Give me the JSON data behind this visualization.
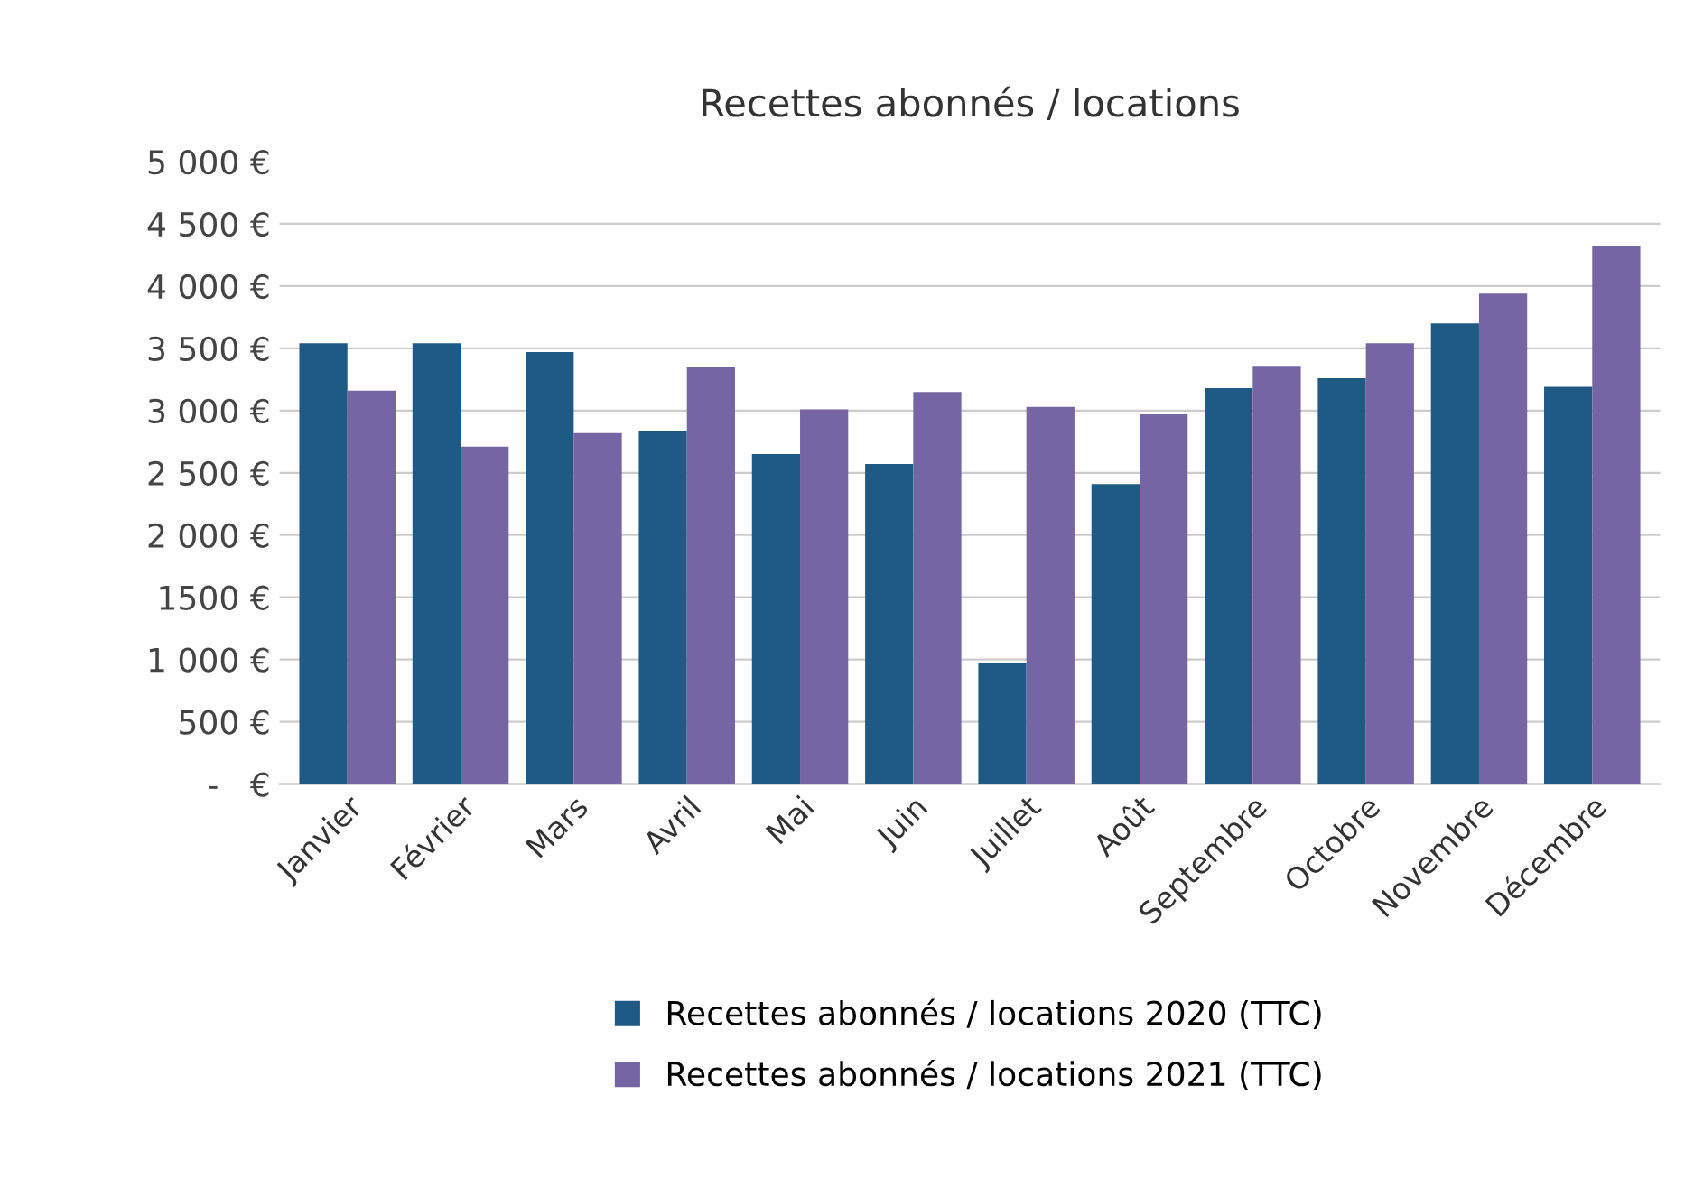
{
  "chart_data": {
    "type": "bar",
    "title": "Recettes abonnés / locations",
    "categories": [
      "Janvier",
      "Février",
      "Mars",
      "Avril",
      "Mai",
      "Juin",
      "Juillet",
      "Août",
      "Septembre",
      "Octobre",
      "Novembre",
      "Décembre"
    ],
    "series": [
      {
        "name": "Recettes abonnés / locations 2020 (TTC)",
        "color": "#1f5a85",
        "values": [
          3540,
          3540,
          3470,
          2840,
          2650,
          2570,
          970,
          2410,
          3180,
          3260,
          3700,
          3190
        ]
      },
      {
        "name": "Recettes abonnés / locations 2021 (TTC)",
        "color": "#7565a3",
        "values": [
          3160,
          2710,
          2820,
          3350,
          3010,
          3150,
          3030,
          2970,
          3360,
          3540,
          3940,
          4320
        ]
      }
    ],
    "ylim": [
      0,
      5000
    ],
    "yticks": [
      {
        "value": 0,
        "label": "-   €"
      },
      {
        "value": 500,
        "label": "500 €"
      },
      {
        "value": 1000,
        "label": "1 000 €"
      },
      {
        "value": 1500,
        "label": "1500 €"
      },
      {
        "value": 2000,
        "label": "2 000 €"
      },
      {
        "value": 2500,
        "label": "2 500 €"
      },
      {
        "value": 3000,
        "label": "3 000 €"
      },
      {
        "value": 3500,
        "label": "3 500 €"
      },
      {
        "value": 4000,
        "label": "4 000 €"
      },
      {
        "value": 4500,
        "label": "4 500 €"
      },
      {
        "value": 5000,
        "label": "5 000 €"
      }
    ],
    "grid": "y",
    "legend": "bottom"
  }
}
